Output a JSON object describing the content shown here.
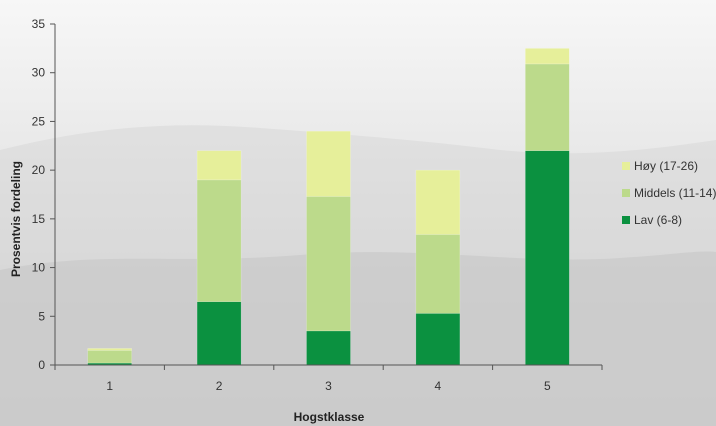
{
  "chart_data": {
    "type": "bar",
    "stacked": true,
    "categories": [
      "1",
      "2",
      "3",
      "4",
      "5"
    ],
    "series": [
      {
        "name": "Lav (6-8)",
        "values": [
          0.2,
          6.5,
          3.5,
          5.3,
          22.0
        ],
        "color": "#0b9140"
      },
      {
        "name": "Middels (11-14)",
        "values": [
          1.3,
          12.5,
          13.8,
          8.1,
          8.9
        ],
        "color": "#bcda8b"
      },
      {
        "name": "Høy (17-26)",
        "values": [
          0.2,
          3.0,
          6.7,
          6.6,
          1.6
        ],
        "color": "#e6ef9a"
      }
    ],
    "legend_order": [
      "Høy (17-26)",
      "Middels (11-14)",
      "Lav (6-8)"
    ],
    "legend_position": "right",
    "xlabel": "Hogstklasse",
    "ylabel": "Prosentvis fordeling",
    "ylim": [
      0,
      35
    ],
    "yticks": [
      "0",
      "5",
      "10",
      "15",
      "20",
      "25",
      "30",
      "35"
    ],
    "grid": false
  }
}
